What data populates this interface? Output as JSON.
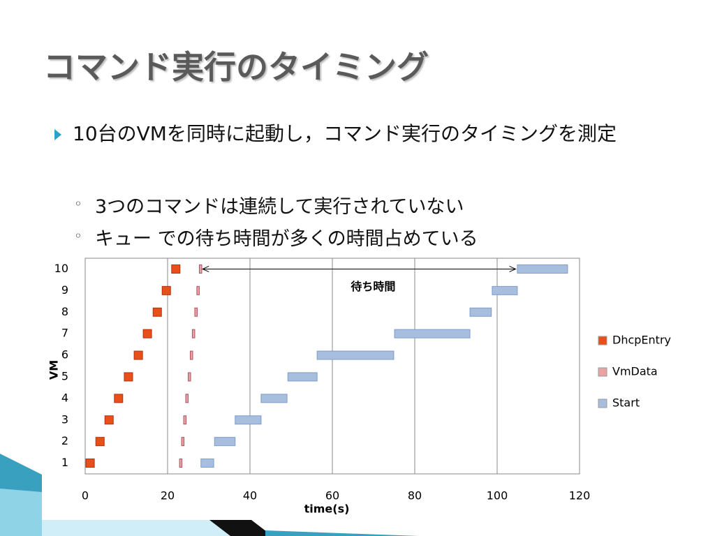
{
  "header": {
    "title": "コマンド実行のタイミング"
  },
  "bullets": [
    {
      "text": "10台のVMを同時に起動し，コマンド実行のタイミングを測定",
      "children": [
        "3つのコマンドは連続して実行されていない",
        "キュー での待ち時間が多くの時間占めている"
      ]
    }
  ],
  "chart_data": {
    "type": "gantt",
    "categories": [
      "1",
      "2",
      "3",
      "4",
      "5",
      "6",
      "7",
      "8",
      "9",
      "10"
    ],
    "xlabel": "time(s)",
    "ylabel": "VM",
    "xlim": [
      0,
      120
    ],
    "xticks": [
      0,
      20,
      40,
      60,
      80,
      100,
      120
    ],
    "grid": true,
    "series": [
      {
        "name": "DhcpEntry",
        "color": "#e8501a",
        "values": [
          1.2,
          3.6,
          5.8,
          8.1,
          10.5,
          12.9,
          15.1,
          17.5,
          19.7,
          22.0
        ]
      },
      {
        "name": "VmData",
        "color": "#e9a3a5",
        "values": [
          23.2,
          23.7,
          24.2,
          24.7,
          25.3,
          25.8,
          26.3,
          26.9,
          27.4,
          28.0
        ]
      },
      {
        "name": "Start",
        "color": "#a7bedf",
        "start": [
          28.1,
          31.4,
          36.4,
          42.7,
          49.2,
          56.3,
          75.1,
          93.4,
          98.8,
          104.9
        ],
        "end": [
          31.2,
          36.4,
          42.7,
          49.0,
          56.3,
          74.9,
          93.4,
          98.6,
          104.9,
          117.1
        ]
      }
    ],
    "annotation": {
      "text": "待ち時間",
      "from": 28.5,
      "to": 104.5,
      "category": 9
    }
  }
}
